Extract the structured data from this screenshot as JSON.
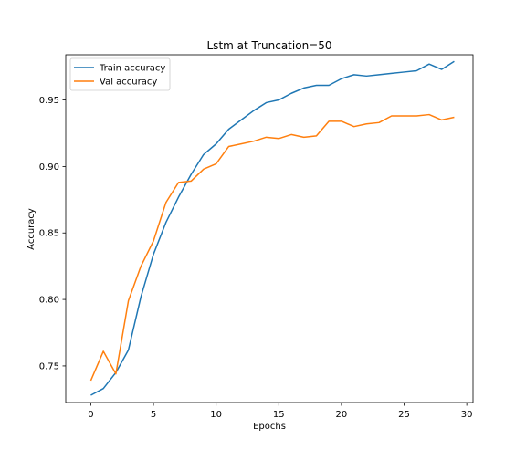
{
  "chart_data": {
    "type": "line",
    "title": "Lstm at Truncation=50",
    "xlabel": "Epochs",
    "ylabel": "Accuracy",
    "xlim": [
      -2,
      30.5
    ],
    "ylim": [
      0.7225,
      0.984
    ],
    "xticks": [
      0,
      5,
      10,
      15,
      20,
      25,
      30
    ],
    "yticks": [
      0.75,
      0.8,
      0.85,
      0.9,
      0.95
    ],
    "grid": false,
    "legend_position": "top-left",
    "x": [
      0,
      1,
      2,
      3,
      4,
      5,
      6,
      7,
      8,
      9,
      10,
      11,
      12,
      13,
      14,
      15,
      16,
      17,
      18,
      19,
      20,
      21,
      22,
      23,
      24,
      25,
      26,
      27,
      28,
      29
    ],
    "series": [
      {
        "name": "Train accuracy",
        "color": "#1f77b4",
        "values": [
          0.728,
          0.733,
          0.745,
          0.762,
          0.802,
          0.834,
          0.858,
          0.877,
          0.894,
          0.909,
          0.917,
          0.928,
          0.935,
          0.942,
          0.948,
          0.95,
          0.955,
          0.959,
          0.961,
          0.961,
          0.966,
          0.969,
          0.968,
          0.969,
          0.97,
          0.971,
          0.972,
          0.977,
          0.973,
          0.979
        ]
      },
      {
        "name": "Val accuracy",
        "color": "#ff7f0e",
        "values": [
          0.739,
          0.761,
          0.744,
          0.799,
          0.825,
          0.844,
          0.873,
          0.888,
          0.889,
          0.898,
          0.902,
          0.915,
          0.917,
          0.919,
          0.922,
          0.921,
          0.924,
          0.922,
          0.923,
          0.934,
          0.934,
          0.93,
          0.932,
          0.933,
          0.938,
          0.938,
          0.938,
          0.939,
          0.935,
          0.937
        ]
      }
    ]
  }
}
